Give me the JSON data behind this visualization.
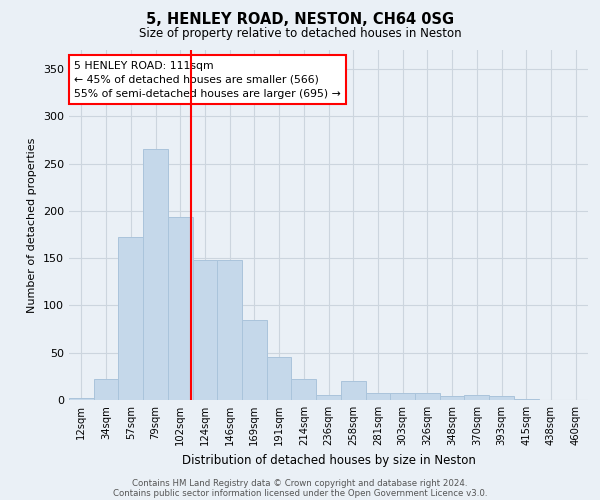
{
  "title1": "5, HENLEY ROAD, NESTON, CH64 0SG",
  "title2": "Size of property relative to detached houses in Neston",
  "xlabel": "Distribution of detached houses by size in Neston",
  "ylabel": "Number of detached properties",
  "categories": [
    "12sqm",
    "34sqm",
    "57sqm",
    "79sqm",
    "102sqm",
    "124sqm",
    "146sqm",
    "169sqm",
    "191sqm",
    "214sqm",
    "236sqm",
    "258sqm",
    "281sqm",
    "303sqm",
    "326sqm",
    "348sqm",
    "370sqm",
    "393sqm",
    "415sqm",
    "438sqm",
    "460sqm"
  ],
  "values": [
    2,
    22,
    172,
    265,
    193,
    148,
    148,
    85,
    45,
    22,
    5,
    20,
    7,
    7,
    7,
    4,
    5,
    4,
    1,
    0,
    0
  ],
  "bar_color": "#c5d8ea",
  "bar_edge_color": "#aac4db",
  "grid_color": "#ccd5de",
  "bg_color": "#eaf0f6",
  "vline_color": "red",
  "annotation_text": "5 HENLEY ROAD: 111sqm\n← 45% of detached houses are smaller (566)\n55% of semi-detached houses are larger (695) →",
  "annotation_box_color": "white",
  "annotation_box_edge": "red",
  "footer1": "Contains HM Land Registry data © Crown copyright and database right 2024.",
  "footer2": "Contains public sector information licensed under the Open Government Licence v3.0.",
  "ylim": [
    0,
    370
  ],
  "yticks": [
    0,
    50,
    100,
    150,
    200,
    250,
    300,
    350
  ],
  "vline_pos": 4.45
}
